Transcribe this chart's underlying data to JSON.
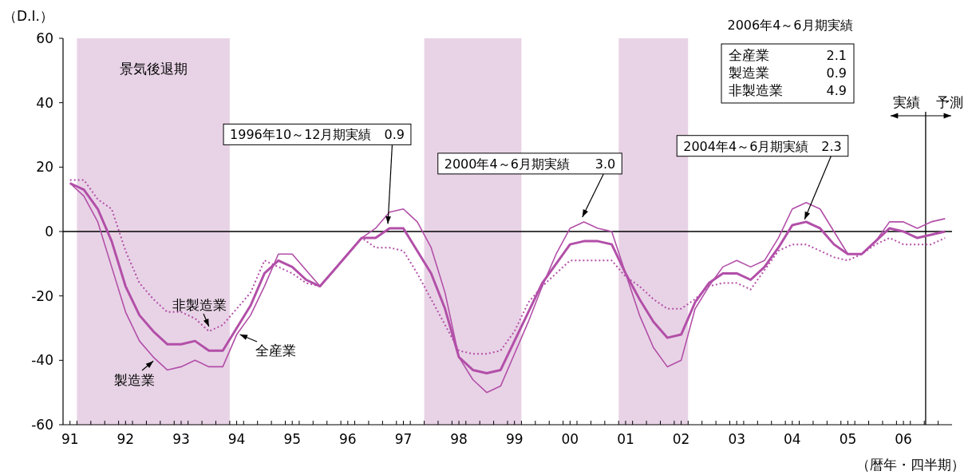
{
  "chart_data": {
    "type": "line",
    "xlabel": "（暦年・四半期）",
    "ylabel": "（D.I.）",
    "x": [
      1991,
      1991.25,
      1991.5,
      1991.75,
      1992,
      1992.25,
      1992.5,
      1992.75,
      1993,
      1993.25,
      1993.5,
      1993.75,
      1994,
      1994.25,
      1994.5,
      1994.75,
      1995,
      1995.25,
      1995.5,
      1995.75,
      1996,
      1996.25,
      1996.5,
      1996.75,
      1997,
      1997.25,
      1997.5,
      1997.75,
      1998,
      1998.25,
      1998.5,
      1998.75,
      1999,
      1999.25,
      1999.5,
      1999.75,
      2000,
      2000.25,
      2000.5,
      2000.75,
      2001,
      2001.25,
      2001.5,
      2001.75,
      2002,
      2002.25,
      2002.5,
      2002.75,
      2003,
      2003.25,
      2003.5,
      2003.75,
      2004,
      2004.25,
      2004.5,
      2004.75,
      2005,
      2005.25,
      2005.5,
      2005.75,
      2006,
      2006.25,
      2006.5,
      2006.75
    ],
    "series": [
      {
        "name": "全産業",
        "color": "#b24fa8",
        "line_style": "solid",
        "values": [
          15,
          13,
          7,
          -3,
          -17,
          -26,
          -31,
          -35,
          -35,
          -34,
          -37,
          -37,
          -30,
          -23,
          -13,
          -9,
          -11,
          -15,
          -17,
          -12,
          -7,
          -2,
          -2,
          1,
          1,
          -6,
          -13,
          -24,
          -39,
          -43,
          -44,
          -43,
          -34,
          -25,
          -16,
          -10,
          -4,
          -3,
          -3,
          -4,
          -13,
          -21,
          -28,
          -33,
          -32,
          -22,
          -16,
          -13,
          -13,
          -15,
          -11,
          -5,
          2,
          3,
          1,
          -4,
          -7,
          -7,
          -3,
          1,
          0,
          -2,
          -1,
          0
        ]
      },
      {
        "name": "製造業",
        "color": "#b24fa8",
        "line_style": "solid",
        "values": [
          15,
          11,
          3,
          -11,
          -25,
          -34,
          -39,
          -43,
          -42,
          -40,
          -42,
          -42,
          -32,
          -26,
          -17,
          -7,
          -7,
          -12,
          -17,
          -12,
          -7,
          -2,
          1,
          6,
          7,
          3,
          -5,
          -19,
          -39,
          -46,
          -50,
          -48,
          -38,
          -28,
          -17,
          -7,
          1,
          3,
          1,
          0,
          -13,
          -26,
          -36,
          -42,
          -40,
          -24,
          -17,
          -11,
          -9,
          -11,
          -9,
          -2,
          7,
          9,
          7,
          0,
          -7,
          -7,
          -3,
          3,
          3,
          1,
          3,
          4
        ]
      },
      {
        "name": "非製造業",
        "color": "#b24fa8",
        "line_style": "dotted",
        "values": [
          16,
          16,
          10,
          7,
          -6,
          -16,
          -21,
          -25,
          -25,
          -27,
          -31,
          -29,
          -24,
          -19,
          -9,
          -11,
          -13,
          -16,
          -17,
          -12,
          -7,
          -2,
          -5,
          -5,
          -6,
          -13,
          -21,
          -29,
          -37,
          -38,
          -38,
          -37,
          -31,
          -22,
          -17,
          -13,
          -9,
          -9,
          -9,
          -9,
          -14,
          -17,
          -21,
          -24,
          -24,
          -21,
          -17,
          -16,
          -16,
          -18,
          -12,
          -6,
          -4,
          -4,
          -6,
          -8,
          -9,
          -7,
          -4,
          -2,
          -4,
          -4,
          -4,
          -2
        ]
      }
    ],
    "xlim": [
      1990.875,
      2006.875
    ],
    "xticks": [
      {
        "value": 1991,
        "label": "91"
      },
      {
        "value": 1992,
        "label": "92"
      },
      {
        "value": 1993,
        "label": "93"
      },
      {
        "value": 1994,
        "label": "94"
      },
      {
        "value": 1995,
        "label": "95"
      },
      {
        "value": 1996,
        "label": "96"
      },
      {
        "value": 1997,
        "label": "97"
      },
      {
        "value": 1998,
        "label": "98"
      },
      {
        "value": 1999,
        "label": "99"
      },
      {
        "value": 2000,
        "label": "00"
      },
      {
        "value": 2001,
        "label": "01"
      },
      {
        "value": 2002,
        "label": "02"
      },
      {
        "value": 2003,
        "label": "03"
      },
      {
        "value": 2004,
        "label": "04"
      },
      {
        "value": 2005,
        "label": "05"
      },
      {
        "value": 2006,
        "label": "06"
      },
      {
        "value": 1991.125,
        "label": null
      },
      {
        "value": 1991.375,
        "label": null
      },
      {
        "value": 1991.625,
        "label": null
      },
      {
        "value": 1991.875,
        "label": null
      },
      {
        "value": 1992.125,
        "label": null
      },
      {
        "value": 1992.375,
        "label": null
      },
      {
        "value": 1992.625,
        "label": null
      },
      {
        "value": 1992.875,
        "label": null
      },
      {
        "value": 1993.125,
        "label": null
      },
      {
        "value": 1993.375,
        "label": null
      },
      {
        "value": 1993.625,
        "label": null
      },
      {
        "value": 1993.875,
        "label": null
      },
      {
        "value": 1994.125,
        "label": null
      },
      {
        "value": 1994.375,
        "label": null
      },
      {
        "value": 1994.625,
        "label": null
      },
      {
        "value": 1994.875,
        "label": null
      },
      {
        "value": 1995.125,
        "label": null
      },
      {
        "value": 1995.375,
        "label": null
      },
      {
        "value": 1995.625,
        "label": null
      },
      {
        "value": 1995.875,
        "label": null
      },
      {
        "value": 1996.125,
        "label": null
      },
      {
        "value": 1996.375,
        "label": null
      },
      {
        "value": 1996.625,
        "label": null
      },
      {
        "value": 1996.875,
        "label": null
      },
      {
        "value": 1997.125,
        "label": null
      },
      {
        "value": 1997.375,
        "label": null
      },
      {
        "value": 1997.625,
        "label": null
      },
      {
        "value": 1997.875,
        "label": null
      },
      {
        "value": 1998.125,
        "label": null
      },
      {
        "value": 1998.375,
        "label": null
      },
      {
        "value": 1998.625,
        "label": null
      },
      {
        "value": 1998.875,
        "label": null
      },
      {
        "value": 1999.125,
        "label": null
      },
      {
        "value": 1999.375,
        "label": null
      },
      {
        "value": 1999.625,
        "label": null
      },
      {
        "value": 1999.875,
        "label": null
      },
      {
        "value": 2000.125,
        "label": null
      },
      {
        "value": 2000.375,
        "label": null
      },
      {
        "value": 2000.625,
        "label": null
      },
      {
        "value": 2000.875,
        "label": null
      },
      {
        "value": 2001.125,
        "label": null
      },
      {
        "value": 2001.375,
        "label": null
      },
      {
        "value": 2001.625,
        "label": null
      },
      {
        "value": 2001.875,
        "label": null
      },
      {
        "value": 2002.125,
        "label": null
      },
      {
        "value": 2002.375,
        "label": null
      },
      {
        "value": 2002.625,
        "label": null
      },
      {
        "value": 2002.875,
        "label": null
      },
      {
        "value": 2003.125,
        "label": null
      },
      {
        "value": 2003.375,
        "label": null
      },
      {
        "value": 2003.625,
        "label": null
      },
      {
        "value": 2003.875,
        "label": null
      },
      {
        "value": 2004.125,
        "label": null
      },
      {
        "value": 2004.375,
        "label": null
      },
      {
        "value": 2004.625,
        "label": null
      },
      {
        "value": 2004.875,
        "label": null
      },
      {
        "value": 2005.125,
        "label": null
      },
      {
        "value": 2005.375,
        "label": null
      },
      {
        "value": 2005.625,
        "label": null
      },
      {
        "value": 2005.875,
        "label": null
      },
      {
        "value": 2006.125,
        "label": null
      },
      {
        "value": 2006.375,
        "label": null
      },
      {
        "value": 2006.625,
        "label": null
      }
    ],
    "ylim": [
      -60,
      60
    ],
    "yticks": [
      -60,
      -40,
      -20,
      0,
      20,
      40,
      60
    ],
    "bands": [
      {
        "axis": "x",
        "from": 1991.125,
        "to": 1993.875,
        "label": "景気後退期",
        "color": "#e8d3e6"
      },
      {
        "axis": "x",
        "from": 1997.375,
        "to": 1999.125,
        "color": "#e8d3e6"
      },
      {
        "axis": "x",
        "from": 2000.875,
        "to": 2002.125,
        "color": "#e8d3e6"
      }
    ],
    "ref_lines": [
      {
        "axis": "y",
        "value": 0,
        "color": "#000000"
      },
      {
        "axis": "x",
        "value": 2006.4,
        "color": "#000000"
      }
    ],
    "annotations": [
      {
        "text": "1996年10～12月期実績　0.9",
        "x": 1996.75,
        "y": 0.9
      },
      {
        "text": "2000年4～6月期実績　　3.0",
        "x": 2000.25,
        "y": 3.0
      },
      {
        "text": "2004年4～6月期実績　2.3",
        "x": 2004.25,
        "y": 2.3
      },
      "2006年4～6月期実績",
      "全産業",
      "2.1",
      "製造業",
      "0.9",
      "非製造業",
      "4.9",
      "実績",
      "予測"
    ]
  }
}
